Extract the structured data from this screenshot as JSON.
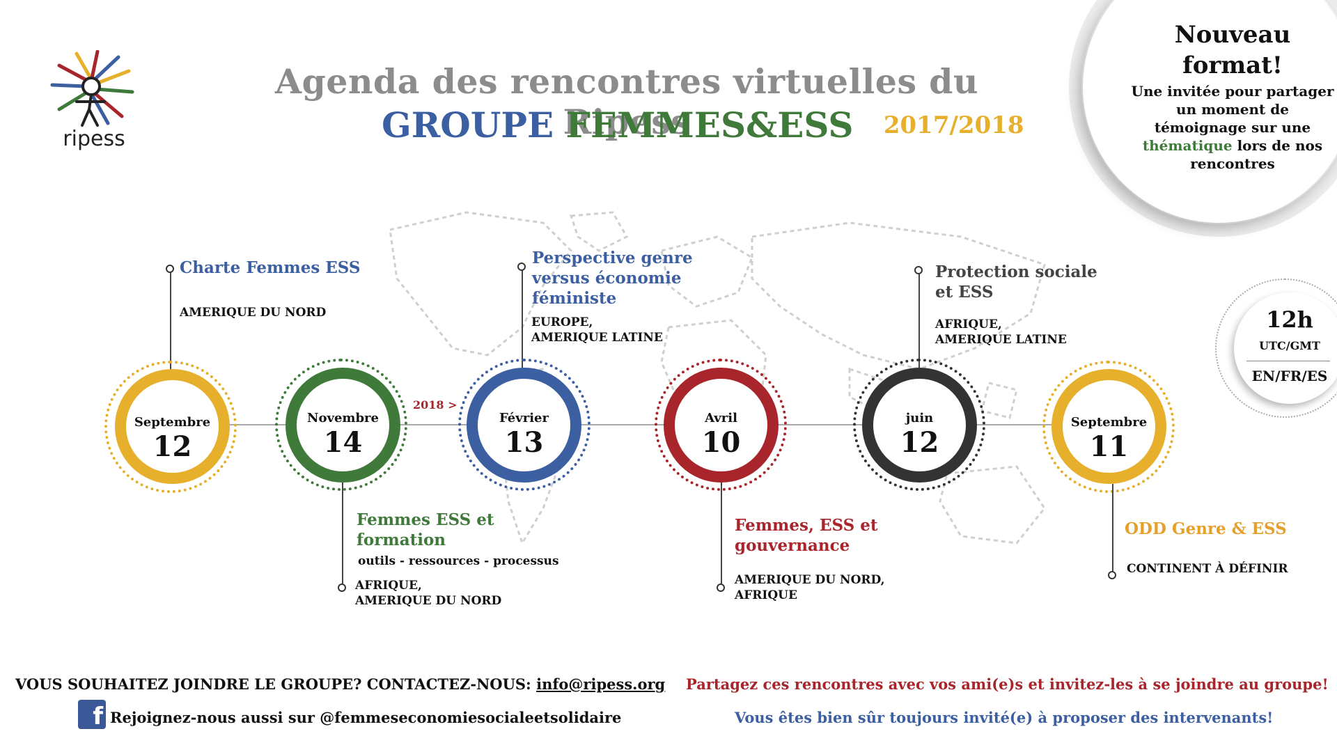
{
  "logo": {
    "text": "ripess"
  },
  "header": {
    "title": "Agenda des rencontres virtuelles du Ripess",
    "group_part1": "GROUPE",
    "group_part2": "FEMMES&ESS",
    "year": "2017/2018"
  },
  "new_format": {
    "heading_line1": "Nouveau",
    "heading_line2": "format!",
    "text_before": "Une invitée pour partager un moment de témoignage sur une",
    "highlight": "thématique",
    "text_after": "lors de nos rencontres"
  },
  "time_badge": {
    "hour": "12h",
    "zone": "UTC/GMT",
    "languages": "EN/FR/ES"
  },
  "year_marker": "2018 >",
  "events": [
    {
      "month": "Septembre",
      "day": "12",
      "color": "#e6b02c",
      "title": "Charte Femmes ESS",
      "title_color": "#3c5fa2",
      "region": "AMERIQUE DU NORD"
    },
    {
      "month": "Novembre",
      "day": "14",
      "color": "#3f7a3b",
      "title_line1": "Femmes ESS et",
      "title_line2": "formation",
      "title_color": "#3f7a3b",
      "subtitle": "outils - ressources - processus",
      "region_line1": "AFRIQUE,",
      "region_line2": "AMERIQUE DU NORD"
    },
    {
      "month": "Février",
      "day": "13",
      "color": "#3c5fa2",
      "title_line1": "Perspective genre",
      "title_line2": "versus économie",
      "title_line3": "féministe",
      "title_color": "#3c5fa2",
      "region_line1": "EUROPE,",
      "region_line2": "AMERIQUE LATINE"
    },
    {
      "month": "Avril",
      "day": "10",
      "color": "#a8262b",
      "title_line1": "Femmes, ESS et",
      "title_line2": "gouvernance",
      "title_color": "#a8262b",
      "region_line1": "AMERIQUE DU NORD,",
      "region_line2": "AFRIQUE"
    },
    {
      "month": "juin",
      "day": "12",
      "color": "#333333",
      "title_line1": "Protection sociale",
      "title_line2": "et ESS",
      "title_color": "#444444",
      "region_line1": "AFRIQUE,",
      "region_line2": "AMERIQUE LATINE"
    },
    {
      "month": "Septembre",
      "day": "11",
      "color": "#e6b02c",
      "title": "ODD Genre & ESS",
      "title_color": "#e6a02c",
      "region": "CONTINENT À DÉFINIR"
    }
  ],
  "footer": {
    "join_text": "VOUS SOUHAITEZ JOINDRE LE GROUPE? CONTACTEZ-NOUS:",
    "email": "info@ripess.org",
    "facebook_text": "Rejoignez-nous aussi sur @femmeseconomiesocialeetsolidaire",
    "share_text": "Partagez ces rencontres avec vos ami(e)s et invitez-les à se joindre au groupe!",
    "invite_text": "Vous êtes bien sûr toujours invité(e) à proposer des intervenants!"
  },
  "icons": {
    "logo": "ripess-logo-icon",
    "facebook": "facebook-icon",
    "map": "world-map-icon"
  }
}
